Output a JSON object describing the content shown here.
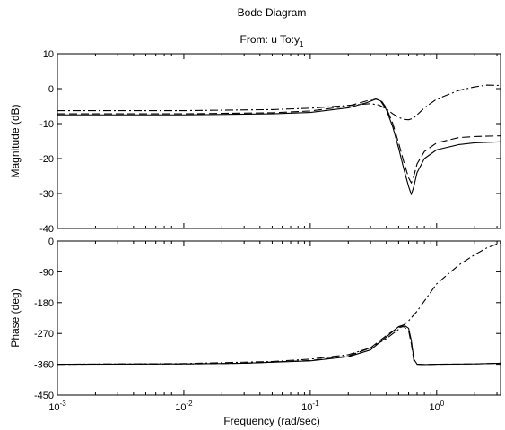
{
  "chart_data": {
    "type": "line",
    "title": "Bode Diagram",
    "subtitle": "From: u  To:y",
    "subtitle_sub": "1",
    "xlabel": "Frequency  (rad/sec)",
    "x_scale": "log",
    "xlim": [
      0.001,
      3.2
    ],
    "x_ticks": [
      {
        "value": 0.001,
        "base": "10",
        "exp": "-3"
      },
      {
        "value": 0.01,
        "base": "10",
        "exp": "-2"
      },
      {
        "value": 0.1,
        "base": "10",
        "exp": "-1"
      },
      {
        "value": 1,
        "base": "10",
        "exp": "0"
      }
    ],
    "grid": false,
    "panels": [
      {
        "ylabel": "Magnitude (dB)",
        "ylim": [
          -40,
          10
        ],
        "y_ticks": [
          10,
          0,
          -10,
          -20,
          -30,
          -40
        ],
        "series": [
          {
            "style": "solid",
            "x": [
              0.001,
              0.01,
              0.05,
              0.1,
              0.2,
              0.28,
              0.33,
              0.36,
              0.4,
              0.45,
              0.5,
              0.55,
              0.6,
              0.63,
              0.66,
              0.7,
              0.8,
              1.0,
              1.5,
              2.0,
              3.2
            ],
            "y": [
              -7.5,
              -7.5,
              -7.2,
              -6.8,
              -5.5,
              -4.0,
              -3.0,
              -3.5,
              -6,
              -11,
              -17,
              -23,
              -28,
              -30.3,
              -28,
              -24,
              -20,
              -17.5,
              -16,
              -15.5,
              -15.2
            ]
          },
          {
            "style": "dashed",
            "x": [
              0.001,
              0.01,
              0.05,
              0.1,
              0.2,
              0.28,
              0.33,
              0.36,
              0.4,
              0.45,
              0.5,
              0.55,
              0.6,
              0.63,
              0.66,
              0.7,
              0.8,
              1.0,
              1.5,
              2.0,
              3.2
            ],
            "y": [
              -7.2,
              -7.2,
              -6.9,
              -6.4,
              -5.0,
              -3.5,
              -2.7,
              -3.2,
              -5.5,
              -10,
              -15.5,
              -21,
              -25.5,
              -27,
              -25,
              -21.5,
              -18,
              -15.5,
              -14,
              -13.7,
              -13.5
            ]
          },
          {
            "style": "dashdot",
            "x": [
              0.001,
              0.01,
              0.05,
              0.1,
              0.2,
              0.3,
              0.35,
              0.4,
              0.45,
              0.5,
              0.55,
              0.6,
              0.65,
              0.7,
              0.8,
              1.0,
              1.5,
              2.0,
              2.5,
              3.2
            ],
            "y": [
              -6.3,
              -6.3,
              -6.0,
              -5.6,
              -4.8,
              -4.3,
              -4.7,
              -5.8,
              -7.2,
              -8.2,
              -8.8,
              -8.9,
              -8.5,
              -7.5,
              -5.5,
              -3.0,
              -0.5,
              0.5,
              1.0,
              0.9
            ]
          }
        ]
      },
      {
        "ylabel": "Phase (deg)",
        "ylim": [
          -450,
          0
        ],
        "y_ticks": [
          0,
          -90,
          -180,
          -270,
          -360,
          -450
        ],
        "series": [
          {
            "style": "solid",
            "x": [
              0.001,
              0.01,
              0.03,
              0.1,
              0.2,
              0.3,
              0.4,
              0.5,
              0.55,
              0.6,
              0.63,
              0.66,
              0.7,
              0.8,
              1.0,
              2.0,
              3.2
            ],
            "y": [
              -360,
              -359,
              -357,
              -350,
              -338,
              -318,
              -280,
              -250,
              -245,
              -255,
              -290,
              -345,
              -360,
              -361,
              -360,
              -359,
              -357
            ]
          },
          {
            "style": "dashed",
            "x": [
              0.001,
              0.01,
              0.03,
              0.1,
              0.2,
              0.3,
              0.4,
              0.5,
              0.55,
              0.6,
              0.63,
              0.66,
              0.7,
              0.8,
              1.0,
              2.0,
              3.2
            ],
            "y": [
              -360,
              -359,
              -357,
              -349,
              -336,
              -312,
              -276,
              -252,
              -250,
              -262,
              -300,
              -350,
              -360,
              -361,
              -360,
              -359,
              -357
            ]
          },
          {
            "style": "dashdot",
            "x": [
              0.001,
              0.01,
              0.05,
              0.1,
              0.2,
              0.3,
              0.4,
              0.5,
              0.6,
              0.7,
              0.8,
              1.0,
              1.5,
              2.0,
              2.5,
              3.2
            ],
            "y": [
              -360,
              -358,
              -352,
              -345,
              -332,
              -312,
              -285,
              -258,
              -233,
              -205,
              -175,
              -125,
              -70,
              -40,
              -20,
              -5
            ]
          }
        ]
      }
    ]
  }
}
